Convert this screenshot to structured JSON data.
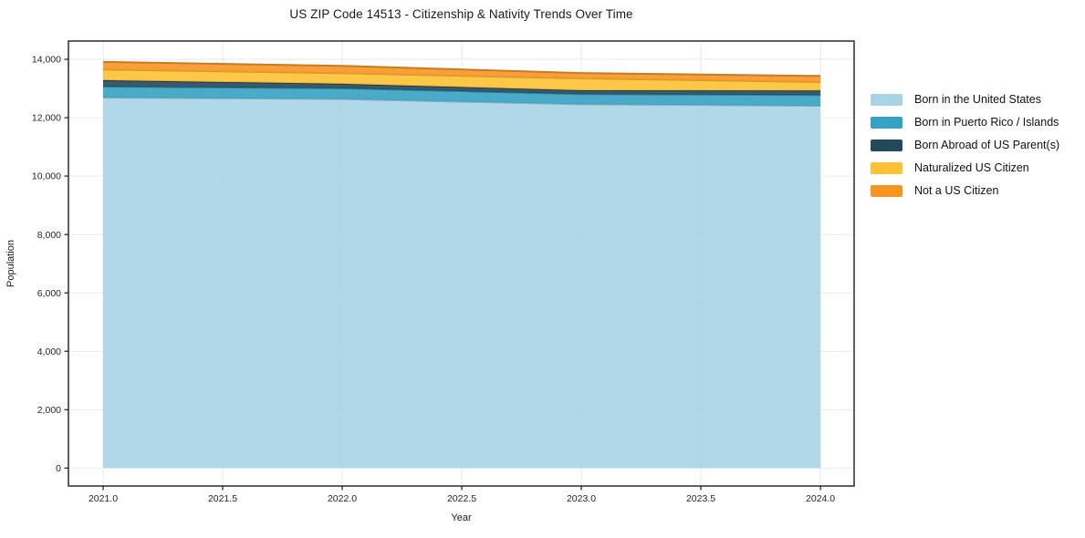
{
  "chart_data": {
    "type": "area",
    "stacked": true,
    "title": "US ZIP Code 14513 - Citizenship & Nativity Trends Over Time",
    "xlabel": "Year",
    "ylabel": "Population",
    "x": [
      2021,
      2022,
      2023,
      2024
    ],
    "series": [
      {
        "name": "Born in the United States",
        "color": "#a9d4e6",
        "values": [
          12690,
          12640,
          12460,
          12410
        ]
      },
      {
        "name": "Born in Puerto Rico / Islands",
        "color": "#36a2c2",
        "values": [
          375,
          365,
          345,
          365
        ]
      },
      {
        "name": "Born Abroad of US Parent(s)",
        "color": "#24485c",
        "values": [
          220,
          155,
          135,
          155
        ]
      },
      {
        "name": "Naturalized US Citizen",
        "color": "#fdc233",
        "values": [
          365,
          365,
          405,
          290
        ]
      },
      {
        "name": "Not a US Citizen",
        "color": "#f79523",
        "values": [
          260,
          250,
          185,
          210
        ]
      }
    ],
    "stack_totals": [
      13910,
      13775,
      13530,
      13430
    ],
    "xticks": [
      2021.0,
      2021.5,
      2022.0,
      2022.5,
      2023.0,
      2023.5,
      2024.0
    ],
    "xtick_labels": [
      "2021.0",
      "2021.5",
      "2022.0",
      "2022.5",
      "2023.0",
      "2023.5",
      "2024.0"
    ],
    "yticks": [
      0,
      2000,
      4000,
      6000,
      8000,
      10000,
      12000,
      14000
    ],
    "ytick_labels": [
      "0",
      "2,000",
      "4,000",
      "6,000",
      "8,000",
      "10,000",
      "12,000",
      "14,000"
    ],
    "xlim": [
      2020.855,
      2024.141
    ],
    "ylim": [
      -615,
      14626
    ],
    "grid": true,
    "legend_position": "right"
  }
}
